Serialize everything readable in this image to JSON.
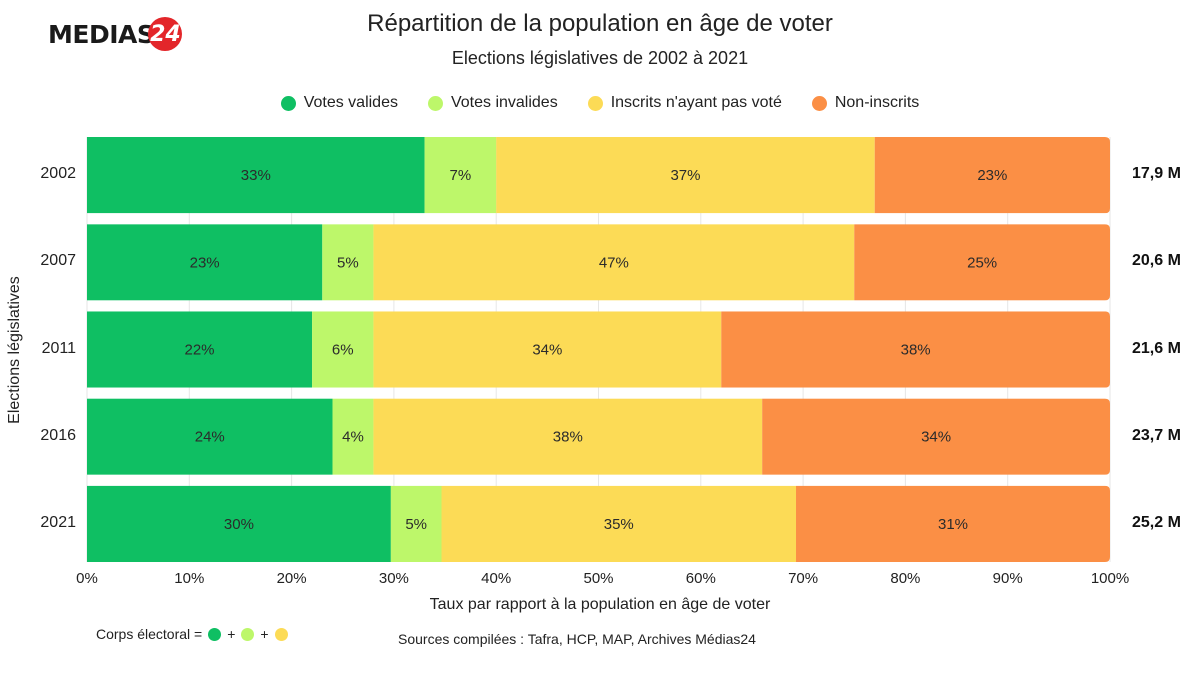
{
  "logo": {
    "text": "MEDIAS",
    "badge": "24",
    "badge_color": "#e3262a"
  },
  "chart_data": {
    "type": "bar",
    "orientation": "horizontal",
    "stacked": true,
    "normalized": true,
    "title": "Répartition de la population en âge de voter",
    "subtitle": "Elections législatives de 2002 à 2021",
    "xlabel": "Taux par rapport à la population en âge de voter",
    "ylabel": "Elections législatives",
    "xlim": [
      0,
      100
    ],
    "x_ticks": [
      "0%",
      "10%",
      "20%",
      "30%",
      "40%",
      "50%",
      "60%",
      "70%",
      "80%",
      "90%",
      "100%"
    ],
    "grid": true,
    "legend_position": "top",
    "categories": [
      "2002",
      "2007",
      "2011",
      "2016",
      "2021"
    ],
    "series": [
      {
        "name": "Votes valides",
        "color": "#0fbf63",
        "values": [
          33,
          23,
          22,
          24,
          30
        ],
        "labels": [
          "33%",
          "23%",
          "22%",
          "24%",
          "30%"
        ]
      },
      {
        "name": "Votes invalides",
        "color": "#bdf76a",
        "values": [
          7,
          5,
          6,
          4,
          5
        ],
        "labels": [
          "7%",
          "5%",
          "6%",
          "4%",
          "5%"
        ]
      },
      {
        "name": "Inscrits n'ayant pas voté",
        "color": "#fcdb56",
        "values": [
          37,
          47,
          34,
          38,
          35
        ],
        "labels": [
          "37%",
          "47%",
          "34%",
          "38%",
          "35%"
        ]
      },
      {
        "name": "Non-inscrits",
        "color": "#fb8f45",
        "values": [
          23,
          25,
          38,
          34,
          31
        ],
        "labels": [
          "23%",
          "25%",
          "38%",
          "34%",
          "31%"
        ]
      }
    ],
    "totals": [
      "17,9 M",
      "20,6 M",
      "21,6 M",
      "23,7 M",
      "25,2 M"
    ]
  },
  "footer": {
    "note_prefix": "Corps électoral =",
    "plus": "+",
    "source": "Sources compilées : Tafra, HCP, MAP, Archives Médias24"
  }
}
